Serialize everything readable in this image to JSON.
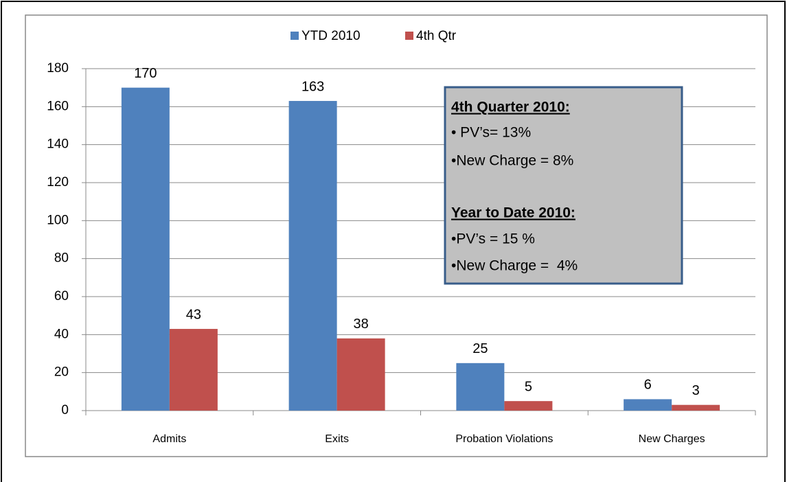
{
  "chart_data": {
    "type": "bar",
    "categories": [
      "Admits",
      "Exits",
      "Probation Violations",
      "New Charges"
    ],
    "series": [
      {
        "name": "YTD 2010",
        "color": "#4f81bd",
        "values": [
          170,
          163,
          25,
          6
        ]
      },
      {
        "name": "4th Qtr",
        "color": "#c0504d",
        "values": [
          43,
          38,
          5,
          3
        ]
      }
    ],
    "ylim": [
      0,
      180
    ],
    "yticks": [
      0,
      20,
      40,
      60,
      80,
      100,
      120,
      140,
      160,
      180
    ],
    "grid": true,
    "legend": "top",
    "annotation": [
      {
        "heading": "4th Quarter 2010:",
        "items": [
          "• PV’s= 13%",
          "•New Charge = 8%"
        ]
      },
      {
        "heading": "Year to Date 2010:",
        "items": [
          "•PV’s = 15 %",
          "•New Charge =  4%"
        ]
      }
    ]
  }
}
